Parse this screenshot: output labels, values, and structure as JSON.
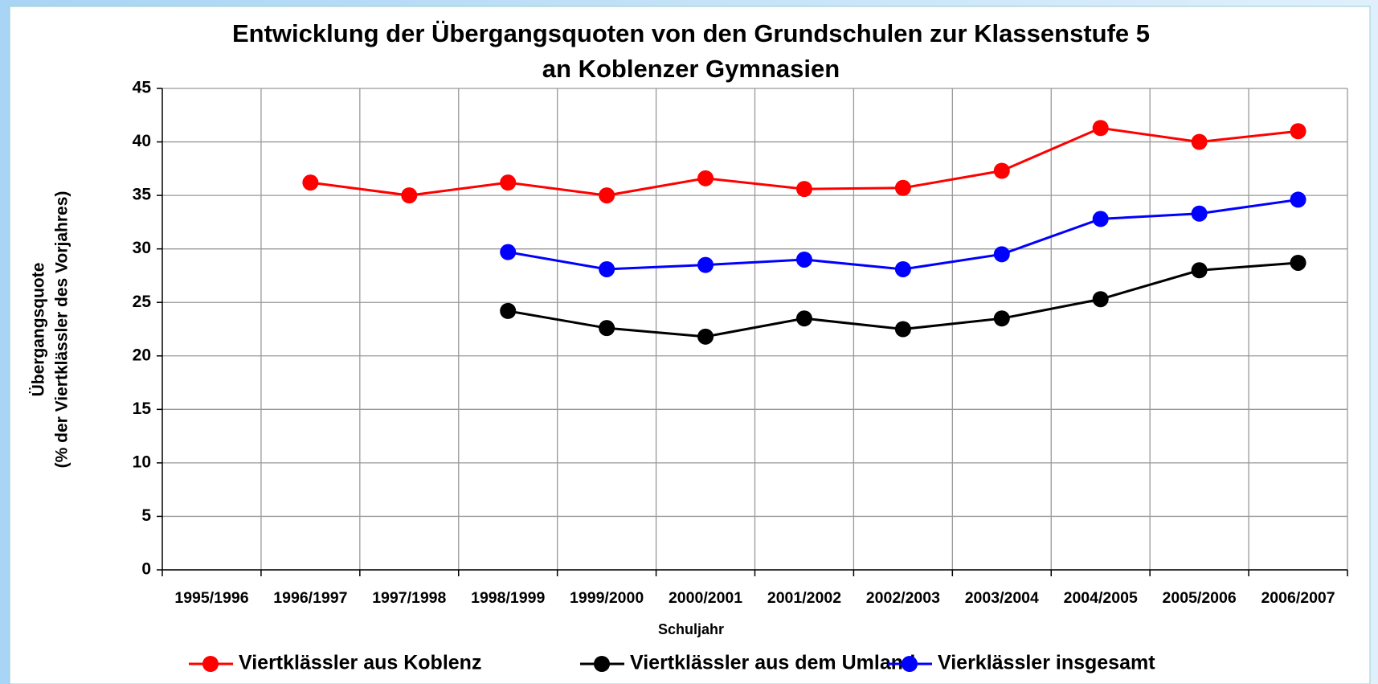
{
  "chart_data": {
    "type": "line",
    "title": [
      "Entwicklung der Übergangsquoten von den Grundschulen zur Klassenstufe 5",
      "an Koblenzer Gymnasien"
    ],
    "x_label": "Schuljahr",
    "y_label": [
      "Übergangsquote",
      "(% der Viertklässler des Vorjahres)"
    ],
    "categories": [
      "1995/1996",
      "1996/1997",
      "1997/1998",
      "1998/1999",
      "1999/2000",
      "2000/2001",
      "2001/2002",
      "2002/2003",
      "2003/2004",
      "2004/2005",
      "2005/2006",
      "2006/2007"
    ],
    "series": [
      {
        "name": "Viertklässler aus Koblenz",
        "color": "#ff0000",
        "values": [
          null,
          36.2,
          35.0,
          36.2,
          35.0,
          36.6,
          35.6,
          35.7,
          37.3,
          41.3,
          40.0,
          41.0
        ]
      },
      {
        "name": "Viertklässler aus dem Umland",
        "color": "#000000",
        "values": [
          null,
          null,
          null,
          24.2,
          22.6,
          21.8,
          23.5,
          22.5,
          23.5,
          25.3,
          28.0,
          28.7
        ]
      },
      {
        "name": "Vierklässler insgesamt",
        "color": "#0000ff",
        "values": [
          null,
          null,
          null,
          29.7,
          28.1,
          28.5,
          29.0,
          28.1,
          29.5,
          32.8,
          33.3,
          34.6
        ]
      }
    ],
    "ylim": [
      0,
      45
    ],
    "yticks": [
      0,
      5,
      10,
      15,
      20,
      25,
      30,
      35,
      40,
      45
    ],
    "grid": true,
    "legend": "bottom"
  }
}
